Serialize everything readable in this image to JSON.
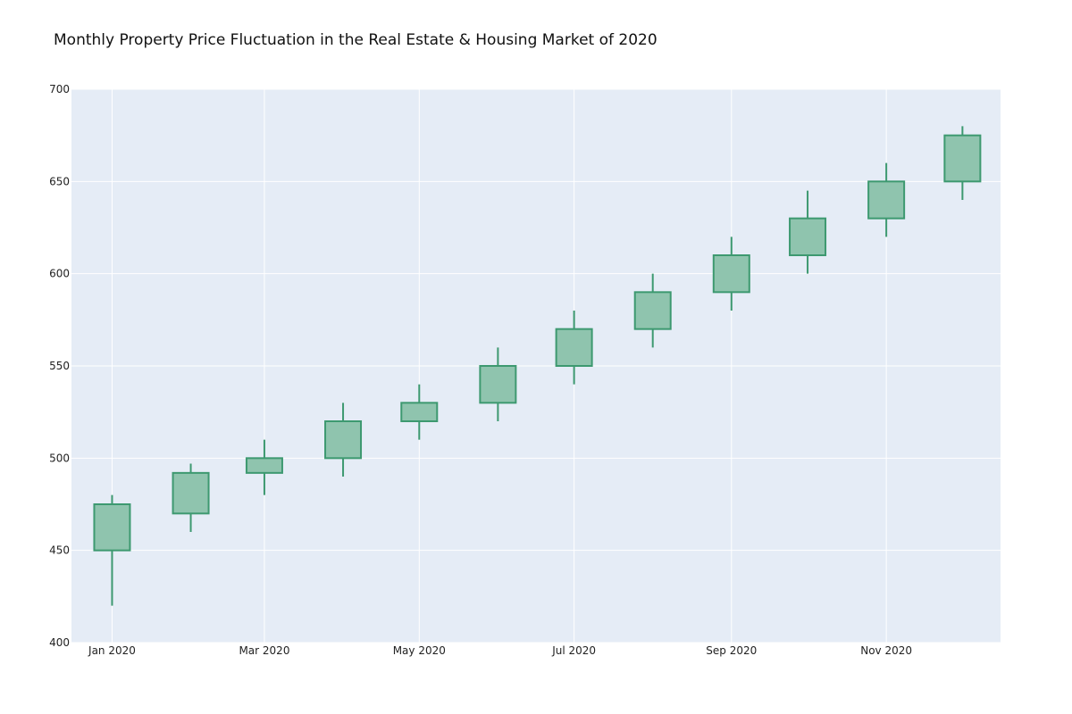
{
  "chart_data": {
    "type": "candlestick",
    "title": "Monthly Property Price Fluctuation in the Real Estate & Housing Market of 2020",
    "xlabel": "",
    "ylabel": "",
    "ylim": [
      400,
      700
    ],
    "y_ticks": [
      "400",
      "450",
      "500",
      "550",
      "600",
      "650",
      "700"
    ],
    "x_tick_labels": [
      "Jan 2020",
      "Mar 2020",
      "May 2020",
      "Jul 2020",
      "Sep 2020",
      "Nov 2020"
    ],
    "x_tick_dates": [
      "2020-01-01",
      "2020-03-01",
      "2020-05-01",
      "2020-07-01",
      "2020-09-01",
      "2020-11-01"
    ],
    "x_range": [
      "2019-12-16",
      "2020-12-16"
    ],
    "grid": true,
    "colors": {
      "increasing_line": "#3d9970",
      "increasing_fill": "#8fc4ae",
      "plot_background": "#e5ecf6",
      "grid": "#ffffff"
    },
    "series": [
      {
        "dates": [
          "2020-01-01",
          "2020-02-01",
          "2020-03-01",
          "2020-04-01",
          "2020-05-01",
          "2020-06-01",
          "2020-07-01",
          "2020-08-01",
          "2020-09-01",
          "2020-10-01",
          "2020-11-01",
          "2020-12-01"
        ],
        "open": [
          450,
          470,
          492,
          500,
          520,
          530,
          550,
          570,
          590,
          610,
          630,
          650
        ],
        "high": [
          480,
          497,
          510,
          530,
          540,
          560,
          580,
          600,
          620,
          645,
          660,
          680
        ],
        "low": [
          420,
          460,
          480,
          490,
          510,
          520,
          540,
          560,
          580,
          600,
          620,
          640
        ],
        "close": [
          475,
          492,
          500,
          520,
          530,
          550,
          570,
          590,
          610,
          630,
          650,
          675
        ]
      }
    ]
  }
}
